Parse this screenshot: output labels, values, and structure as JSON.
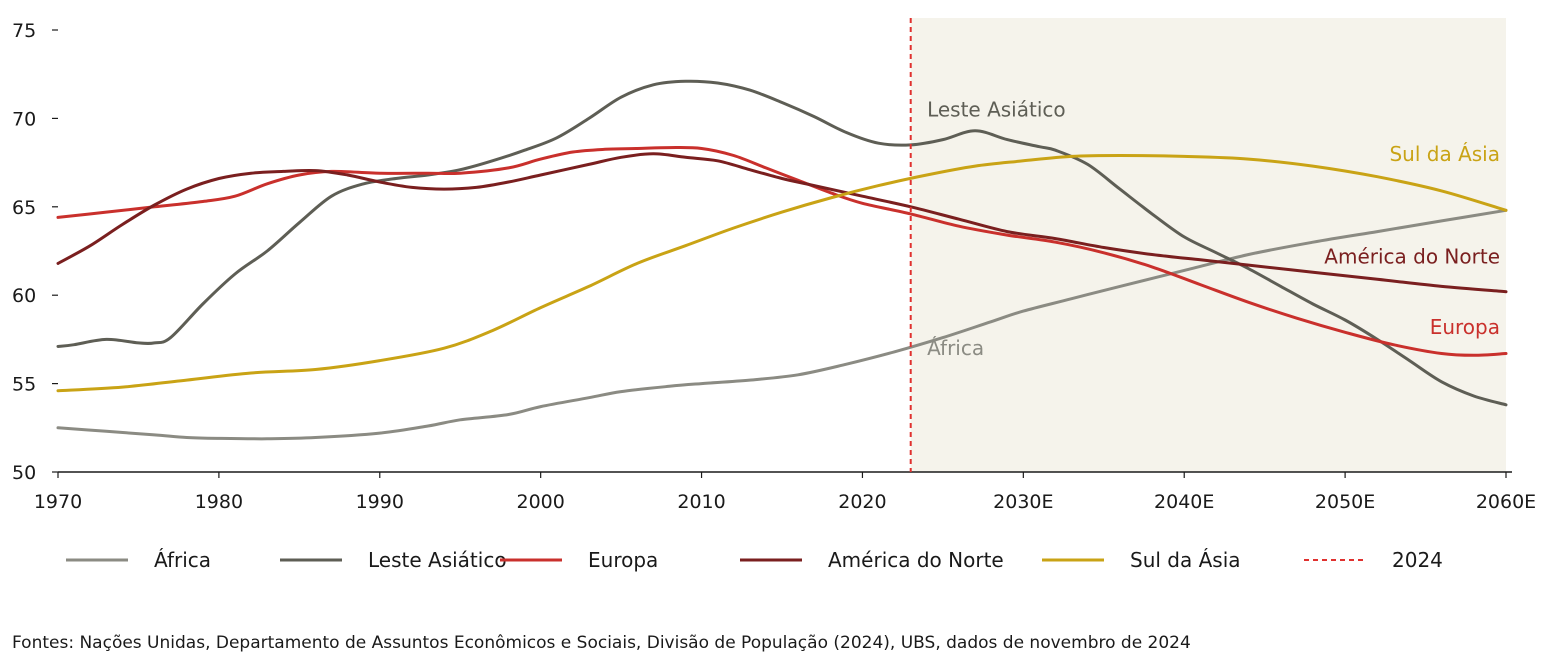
{
  "chart_data": {
    "type": "line",
    "title": "",
    "xlabel": "",
    "ylabel": "",
    "xlim": [
      1970,
      2060
    ],
    "ylim": [
      50,
      75
    ],
    "y_ticks": [
      50,
      55,
      60,
      65,
      70,
      75
    ],
    "x_ticks": [
      {
        "value": 1970,
        "label": "1970"
      },
      {
        "value": 1980,
        "label": "1980"
      },
      {
        "value": 1990,
        "label": "1990"
      },
      {
        "value": 2000,
        "label": "2000"
      },
      {
        "value": 2010,
        "label": "2010"
      },
      {
        "value": 2020,
        "label": "2020"
      },
      {
        "value": 2030,
        "label": "2030E"
      },
      {
        "value": 2040,
        "label": "2040E"
      },
      {
        "value": 2050,
        "label": "2050E"
      },
      {
        "value": 2060,
        "label": "2060E"
      }
    ],
    "projection_start": 2023,
    "projection_label": "2024",
    "projection_color": "#e0312f",
    "projection_shade": "#f5f3eb",
    "legend_position": "bottom",
    "series": [
      {
        "name": "África",
        "color": "#8b8b83",
        "label": "África",
        "points": [
          [
            1970,
            52.5
          ],
          [
            1973,
            52.3
          ],
          [
            1976,
            52.1
          ],
          [
            1978,
            51.95
          ],
          [
            1980,
            51.9
          ],
          [
            1983,
            51.88
          ],
          [
            1986,
            51.95
          ],
          [
            1990,
            52.2
          ],
          [
            1993,
            52.6
          ],
          [
            1995,
            52.95
          ],
          [
            1998,
            53.25
          ],
          [
            2000,
            53.7
          ],
          [
            2003,
            54.2
          ],
          [
            2005,
            54.55
          ],
          [
            2008,
            54.85
          ],
          [
            2010,
            55.0
          ],
          [
            2013,
            55.2
          ],
          [
            2016,
            55.5
          ],
          [
            2019,
            56.1
          ],
          [
            2022,
            56.8
          ],
          [
            2025,
            57.6
          ],
          [
            2028,
            58.5
          ],
          [
            2030,
            59.1
          ],
          [
            2033,
            59.8
          ],
          [
            2036,
            60.5
          ],
          [
            2040,
            61.4
          ],
          [
            2044,
            62.3
          ],
          [
            2048,
            63.0
          ],
          [
            2052,
            63.6
          ],
          [
            2056,
            64.2
          ],
          [
            2060,
            64.8
          ]
        ]
      },
      {
        "name": "Leste Asiático",
        "color": "#5e5e55",
        "label": "Leste Asiático",
        "points": [
          [
            1970,
            57.1
          ],
          [
            1971,
            57.2
          ],
          [
            1973,
            57.5
          ],
          [
            1975,
            57.3
          ],
          [
            1976,
            57.3
          ],
          [
            1977,
            57.6
          ],
          [
            1979,
            59.5
          ],
          [
            1981,
            61.2
          ],
          [
            1983,
            62.5
          ],
          [
            1985,
            64.1
          ],
          [
            1987,
            65.6
          ],
          [
            1989,
            66.3
          ],
          [
            1991,
            66.6
          ],
          [
            1993,
            66.8
          ],
          [
            1995,
            67.1
          ],
          [
            1997,
            67.6
          ],
          [
            1999,
            68.2
          ],
          [
            2001,
            68.9
          ],
          [
            2003,
            70.0
          ],
          [
            2005,
            71.2
          ],
          [
            2007,
            71.9
          ],
          [
            2009,
            72.1
          ],
          [
            2011,
            72.0
          ],
          [
            2013,
            71.6
          ],
          [
            2015,
            70.9
          ],
          [
            2017,
            70.1
          ],
          [
            2019,
            69.2
          ],
          [
            2021,
            68.6
          ],
          [
            2023,
            68.5
          ],
          [
            2025,
            68.8
          ],
          [
            2027,
            69.3
          ],
          [
            2029,
            68.8
          ],
          [
            2031,
            68.4
          ],
          [
            2032,
            68.2
          ],
          [
            2034,
            67.4
          ],
          [
            2036,
            66.0
          ],
          [
            2038,
            64.6
          ],
          [
            2040,
            63.3
          ],
          [
            2042,
            62.4
          ],
          [
            2044,
            61.5
          ],
          [
            2046,
            60.5
          ],
          [
            2048,
            59.5
          ],
          [
            2050,
            58.6
          ],
          [
            2052,
            57.5
          ],
          [
            2054,
            56.3
          ],
          [
            2056,
            55.1
          ],
          [
            2058,
            54.3
          ],
          [
            2060,
            53.8
          ]
        ]
      },
      {
        "name": "Europa",
        "color": "#c9302c",
        "label": "Europa",
        "points": [
          [
            1970,
            64.4
          ],
          [
            1973,
            64.7
          ],
          [
            1976,
            65.0
          ],
          [
            1979,
            65.3
          ],
          [
            1981,
            65.6
          ],
          [
            1983,
            66.3
          ],
          [
            1985,
            66.8
          ],
          [
            1987,
            67.0
          ],
          [
            1990,
            66.9
          ],
          [
            1993,
            66.9
          ],
          [
            1995,
            66.9
          ],
          [
            1998,
            67.2
          ],
          [
            2000,
            67.7
          ],
          [
            2002,
            68.1
          ],
          [
            2004,
            68.25
          ],
          [
            2006,
            68.3
          ],
          [
            2008,
            68.35
          ],
          [
            2010,
            68.3
          ],
          [
            2012,
            67.9
          ],
          [
            2014,
            67.2
          ],
          [
            2016,
            66.5
          ],
          [
            2018,
            65.8
          ],
          [
            2020,
            65.2
          ],
          [
            2023,
            64.6
          ],
          [
            2026,
            63.9
          ],
          [
            2029,
            63.4
          ],
          [
            2032,
            63.0
          ],
          [
            2035,
            62.4
          ],
          [
            2038,
            61.6
          ],
          [
            2041,
            60.6
          ],
          [
            2044,
            59.6
          ],
          [
            2047,
            58.7
          ],
          [
            2050,
            57.9
          ],
          [
            2053,
            57.2
          ],
          [
            2056,
            56.7
          ],
          [
            2058,
            56.6
          ],
          [
            2060,
            56.7
          ]
        ]
      },
      {
        "name": "América do Norte",
        "color": "#7a1f1f",
        "label": "América do Norte",
        "points": [
          [
            1970,
            61.8
          ],
          [
            1972,
            62.8
          ],
          [
            1974,
            64.0
          ],
          [
            1976,
            65.1
          ],
          [
            1978,
            66.0
          ],
          [
            1980,
            66.6
          ],
          [
            1982,
            66.9
          ],
          [
            1984,
            67.0
          ],
          [
            1986,
            67.05
          ],
          [
            1988,
            66.8
          ],
          [
            1990,
            66.4
          ],
          [
            1992,
            66.1
          ],
          [
            1994,
            66.0
          ],
          [
            1996,
            66.1
          ],
          [
            1998,
            66.4
          ],
          [
            2000,
            66.8
          ],
          [
            2003,
            67.4
          ],
          [
            2005,
            67.8
          ],
          [
            2007,
            68.0
          ],
          [
            2009,
            67.8
          ],
          [
            2011,
            67.6
          ],
          [
            2013,
            67.1
          ],
          [
            2015,
            66.6
          ],
          [
            2017,
            66.2
          ],
          [
            2020,
            65.6
          ],
          [
            2023,
            65.0
          ],
          [
            2026,
            64.3
          ],
          [
            2029,
            63.6
          ],
          [
            2032,
            63.2
          ],
          [
            2035,
            62.7
          ],
          [
            2038,
            62.3
          ],
          [
            2041,
            62.0
          ],
          [
            2044,
            61.7
          ],
          [
            2048,
            61.3
          ],
          [
            2052,
            60.9
          ],
          [
            2056,
            60.5
          ],
          [
            2060,
            60.2
          ]
        ]
      },
      {
        "name": "Sul da Ásia",
        "color": "#c9a315",
        "label": "Sul da Ásia",
        "points": [
          [
            1970,
            54.6
          ],
          [
            1974,
            54.8
          ],
          [
            1978,
            55.2
          ],
          [
            1982,
            55.6
          ],
          [
            1986,
            55.8
          ],
          [
            1990,
            56.3
          ],
          [
            1994,
            57.0
          ],
          [
            1997,
            58.0
          ],
          [
            2000,
            59.3
          ],
          [
            2003,
            60.5
          ],
          [
            2006,
            61.8
          ],
          [
            2009,
            62.8
          ],
          [
            2012,
            63.8
          ],
          [
            2015,
            64.7
          ],
          [
            2018,
            65.5
          ],
          [
            2021,
            66.2
          ],
          [
            2024,
            66.8
          ],
          [
            2027,
            67.3
          ],
          [
            2030,
            67.6
          ],
          [
            2033,
            67.85
          ],
          [
            2036,
            67.9
          ],
          [
            2040,
            67.85
          ],
          [
            2044,
            67.7
          ],
          [
            2048,
            67.3
          ],
          [
            2052,
            66.7
          ],
          [
            2056,
            65.9
          ],
          [
            2060,
            64.8
          ]
        ]
      }
    ],
    "annotations": [
      {
        "text": "Leste Asiático",
        "x": 2027,
        "y": 70.5,
        "series": "Leste Asiático"
      },
      {
        "text": "Sul da Ásia",
        "x": 2060,
        "y": 68.0,
        "series": "Sul da Ásia"
      },
      {
        "text": "América do Norte",
        "x": 2060,
        "y": 62.2,
        "series": "América do Norte"
      },
      {
        "text": "Europa",
        "x": 2060,
        "y": 58.2,
        "series": "Europa"
      },
      {
        "text": "África",
        "x": 2027,
        "y": 57.0,
        "series": "África"
      }
    ],
    "legend": [
      {
        "label": "África",
        "color": "#8b8b83",
        "style": "solid"
      },
      {
        "label": "Leste Asiático",
        "color": "#5e5e55",
        "style": "solid"
      },
      {
        "label": "Europa",
        "color": "#c9302c",
        "style": "solid"
      },
      {
        "label": "América do Norte",
        "color": "#7a1f1f",
        "style": "solid"
      },
      {
        "label": "Sul da Ásia",
        "color": "#c9a315",
        "style": "solid"
      },
      {
        "label": "2024",
        "color": "#e0312f",
        "style": "dashed"
      }
    ]
  },
  "source_text": "Fontes: Nações Unidas, Departamento de Assuntos Econômicos e Sociais, Divisão de População (2024), UBS, dados de novembro de 2024"
}
